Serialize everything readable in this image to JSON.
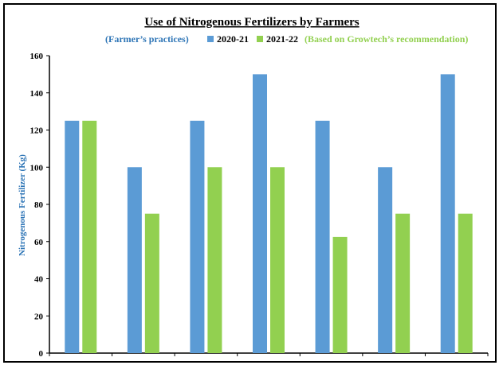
{
  "chart_data": {
    "type": "bar",
    "title": "Use of Nitrogenous Fertilizers by Farmers",
    "ylabel": "Nitrogenous Fertilizer (Kg)",
    "xlabel": "",
    "ylim": [
      0,
      160
    ],
    "yticks": [
      "0",
      "20",
      "40",
      "60",
      "80",
      "100",
      "120",
      "140",
      "160"
    ],
    "categories": [
      "",
      "",
      "",
      "",
      "",
      "",
      ""
    ],
    "series": [
      {
        "name": "2020-21",
        "values": [
          125,
          100,
          125,
          150,
          125,
          100,
          150
        ],
        "color": "#5b9bd5"
      },
      {
        "name": "2021-22",
        "values": [
          125,
          75,
          100,
          100,
          62.5,
          75,
          75
        ],
        "color": "#92d050"
      }
    ],
    "legend": {
      "prefix": "(Farmer’s practices)",
      "suffix": "(Based on Growtech’s recommendation)",
      "position": "top",
      "prefix_color": "#2e75b6",
      "suffix_color": "#92d050"
    },
    "grid": false
  }
}
